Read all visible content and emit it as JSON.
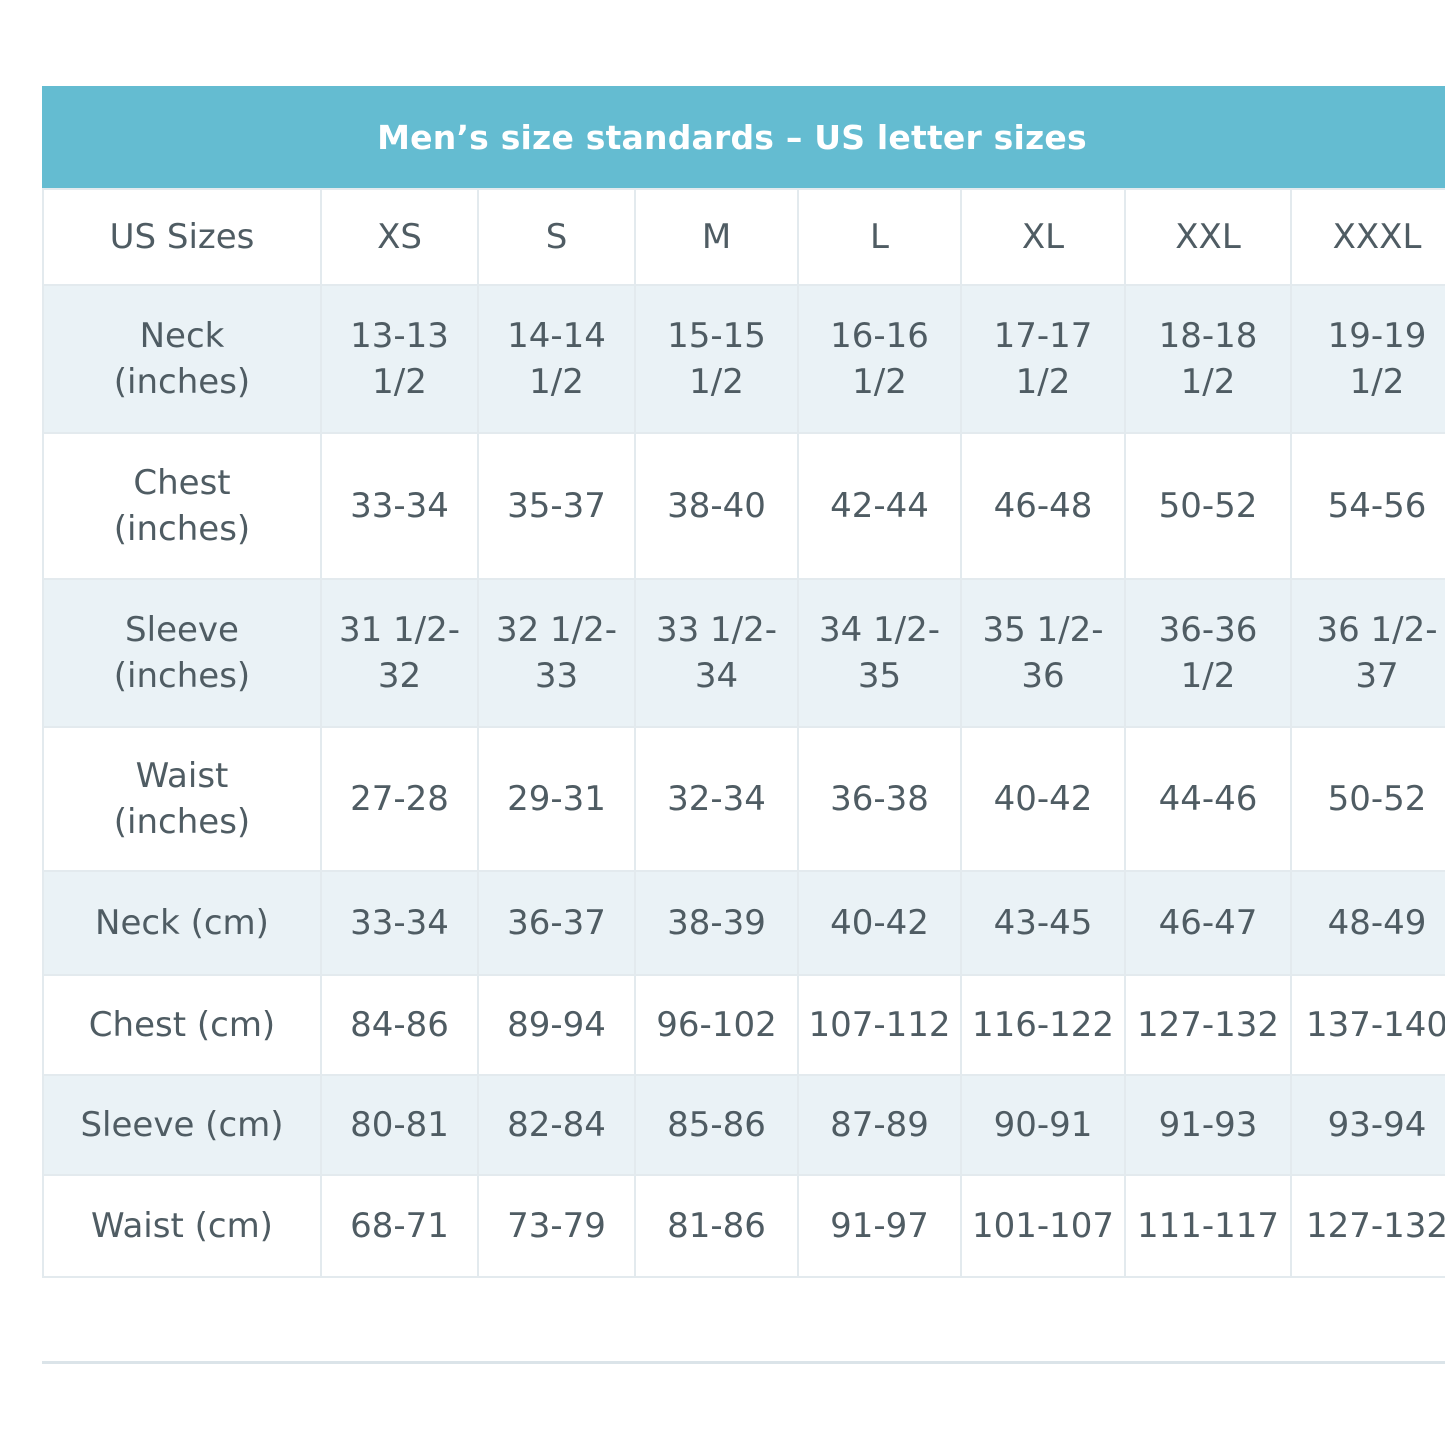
{
  "title": "Men’s size standards – US letter sizes",
  "header": {
    "label": "US Sizes",
    "sizes": [
      "XS",
      "S",
      "M",
      "L",
      "XL",
      "XXL",
      "XXXL"
    ]
  },
  "rows": [
    {
      "label": [
        "Neck",
        "(inches)"
      ],
      "values": [
        [
          "13-13",
          "1/2"
        ],
        [
          "14-14",
          "1/2"
        ],
        [
          "15-15",
          "1/2"
        ],
        [
          "16-16",
          "1/2"
        ],
        [
          "17-17",
          "1/2"
        ],
        [
          "18-18",
          "1/2"
        ],
        [
          "19-19",
          "1/2"
        ]
      ]
    },
    {
      "label": [
        "Chest",
        "(inches)"
      ],
      "values": [
        [
          "33-34"
        ],
        [
          "35-37"
        ],
        [
          "38-40"
        ],
        [
          "42-44"
        ],
        [
          "46-48"
        ],
        [
          "50-52"
        ],
        [
          "54-56"
        ]
      ]
    },
    {
      "label": [
        "Sleeve",
        "(inches)"
      ],
      "values": [
        [
          "31 1/2-",
          "32"
        ],
        [
          "32 1/2-",
          "33"
        ],
        [
          "33 1/2-",
          "34"
        ],
        [
          "34 1/2-",
          "35"
        ],
        [
          "35 1/2-",
          "36"
        ],
        [
          "36-36",
          "1/2"
        ],
        [
          "36 1/2-",
          "37"
        ]
      ]
    },
    {
      "label": [
        "Waist",
        "(inches)"
      ],
      "values": [
        [
          "27-28"
        ],
        [
          "29-31"
        ],
        [
          "32-34"
        ],
        [
          "36-38"
        ],
        [
          "40-42"
        ],
        [
          "44-46"
        ],
        [
          "50-52"
        ]
      ]
    },
    {
      "label": [
        "Neck (cm)"
      ],
      "values": [
        [
          "33-34"
        ],
        [
          "36-37"
        ],
        [
          "38-39"
        ],
        [
          "40-42"
        ],
        [
          "43-45"
        ],
        [
          "46-47"
        ],
        [
          "48-49"
        ]
      ]
    },
    {
      "label": [
        "Chest (cm)"
      ],
      "values": [
        [
          "84-86"
        ],
        [
          "89-94"
        ],
        [
          "96-102"
        ],
        [
          "107-112"
        ],
        [
          "116-122"
        ],
        [
          "127-132"
        ],
        [
          "137-140"
        ]
      ]
    },
    {
      "label": [
        "Sleeve (cm)"
      ],
      "values": [
        [
          "80-81"
        ],
        [
          "82-84"
        ],
        [
          "85-86"
        ],
        [
          "87-89"
        ],
        [
          "90-91"
        ],
        [
          "91-93"
        ],
        [
          "93-94"
        ]
      ]
    },
    {
      "label": [
        "Waist (cm)"
      ],
      "values": [
        [
          "68-71"
        ],
        [
          "73-79"
        ],
        [
          "81-86"
        ],
        [
          "91-97"
        ],
        [
          "101-107"
        ],
        [
          "111-117"
        ],
        [
          "127-132"
        ]
      ]
    }
  ],
  "colors": {
    "title_background": "#64bcd1",
    "title_text": "#ffffff",
    "striped_row": "#eaf2f6",
    "border": "#e3eaee",
    "text": "#4f5c63"
  }
}
